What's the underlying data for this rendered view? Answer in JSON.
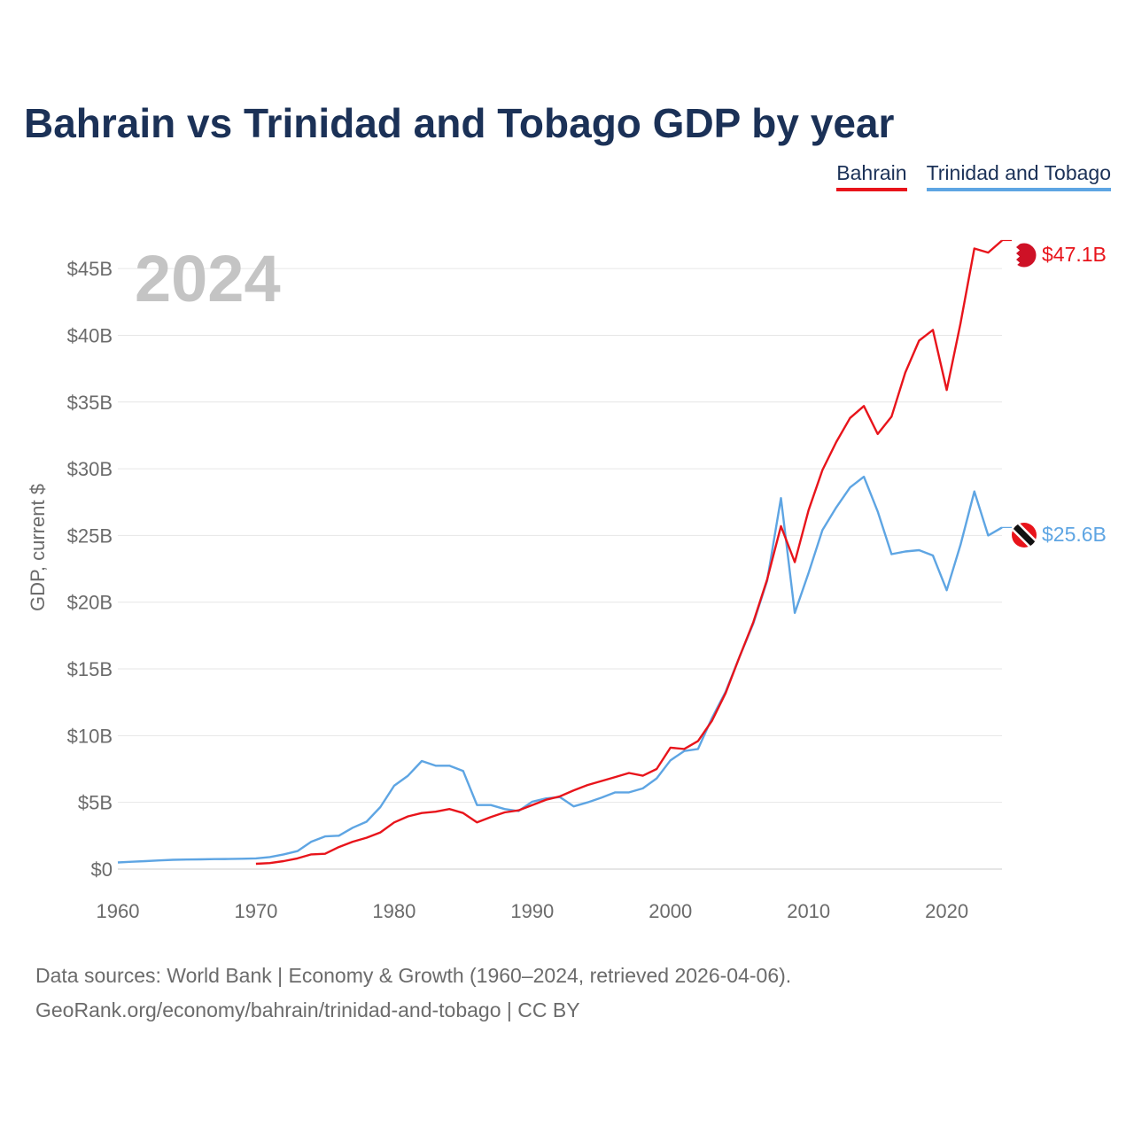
{
  "title": "Bahrain vs Trinidad and Tobago GDP by year",
  "legend": [
    {
      "label": "Bahrain",
      "color": "#e8141b"
    },
    {
      "label": "Trinidad and Tobago",
      "color": "#5ea5e3"
    }
  ],
  "year_label": "2024",
  "source_line1": "Data sources: World Bank | Economy & Growth (1960–2024, retrieved 2026-04-06).",
  "source_line2": "GeoRank.org/economy/bahrain/trinidad-and-tobago | CC BY",
  "chart_data": {
    "type": "line",
    "title": "Bahrain vs Trinidad and Tobago GDP by year",
    "xlabel": "",
    "ylabel": "GDP, current $",
    "xlim": [
      1960,
      2024
    ],
    "ylim": [
      0,
      47
    ],
    "grid": true,
    "x_ticks": [
      1960,
      1970,
      1980,
      1990,
      2000,
      2010,
      2020
    ],
    "x_tick_labels": [
      "1960",
      "1970",
      "1980",
      "1990",
      "2000",
      "2010",
      "2020"
    ],
    "y_ticks": [
      0,
      5,
      10,
      15,
      20,
      25,
      30,
      35,
      40,
      45
    ],
    "y_tick_labels": [
      "$0",
      "$5B",
      "$10B",
      "$15B",
      "$20B",
      "$25B",
      "$30B",
      "$35B",
      "$40B",
      "$45B"
    ],
    "series": [
      {
        "name": "Bahrain",
        "color": "#e8141b",
        "end_label": "$47.1B",
        "x": [
          1970,
          1971,
          1972,
          1973,
          1974,
          1975,
          1976,
          1977,
          1978,
          1979,
          1980,
          1981,
          1982,
          1983,
          1984,
          1985,
          1986,
          1987,
          1988,
          1989,
          1990,
          1991,
          1992,
          1993,
          1994,
          1995,
          1996,
          1997,
          1998,
          1999,
          2000,
          2001,
          2002,
          2003,
          2004,
          2005,
          2006,
          2007,
          2008,
          2009,
          2010,
          2011,
          2012,
          2013,
          2014,
          2015,
          2016,
          2017,
          2018,
          2019,
          2020,
          2021,
          2022,
          2023,
          2024
        ],
        "values": [
          0.4,
          0.45,
          0.6,
          0.8,
          1.1,
          1.15,
          1.65,
          2.05,
          2.35,
          2.75,
          3.5,
          3.95,
          4.2,
          4.3,
          4.5,
          4.2,
          3.5,
          3.9,
          4.25,
          4.4,
          4.8,
          5.2,
          5.45,
          5.9,
          6.3,
          6.6,
          6.9,
          7.2,
          7.0,
          7.5,
          9.1,
          9.0,
          9.6,
          11.1,
          13.2,
          15.9,
          18.5,
          21.7,
          25.7,
          23.0,
          26.9,
          29.9,
          32.0,
          33.8,
          34.7,
          32.6,
          33.9,
          37.2,
          39.6,
          40.4,
          35.9,
          40.9,
          46.5,
          46.2,
          47.1
        ]
      },
      {
        "name": "Trinidad and Tobago",
        "color": "#5ea5e3",
        "end_label": "$25.6B",
        "x": [
          1960,
          1961,
          1962,
          1963,
          1964,
          1965,
          1966,
          1967,
          1968,
          1969,
          1970,
          1971,
          1972,
          1973,
          1974,
          1975,
          1976,
          1977,
          1978,
          1979,
          1980,
          1981,
          1982,
          1983,
          1984,
          1985,
          1986,
          1987,
          1988,
          1989,
          1990,
          1991,
          1992,
          1993,
          1994,
          1995,
          1996,
          1997,
          1998,
          1999,
          2000,
          2001,
          2002,
          2003,
          2004,
          2005,
          2006,
          2007,
          2008,
          2009,
          2010,
          2011,
          2012,
          2013,
          2014,
          2015,
          2016,
          2017,
          2018,
          2019,
          2020,
          2021,
          2022,
          2023,
          2024
        ],
        "values": [
          0.5,
          0.55,
          0.6,
          0.65,
          0.7,
          0.72,
          0.73,
          0.75,
          0.76,
          0.78,
          0.8,
          0.9,
          1.1,
          1.35,
          2.05,
          2.45,
          2.5,
          3.1,
          3.55,
          4.65,
          6.25,
          7.0,
          8.1,
          7.75,
          7.75,
          7.35,
          4.8,
          4.8,
          4.5,
          4.35,
          5.05,
          5.3,
          5.4,
          4.7,
          5.0,
          5.35,
          5.75,
          5.75,
          6.05,
          6.8,
          8.15,
          8.85,
          9.0,
          11.3,
          13.3,
          15.9,
          18.4,
          21.6,
          27.8,
          19.2,
          22.2,
          25.4,
          27.1,
          28.6,
          29.4,
          26.8,
          23.6,
          23.8,
          23.9,
          23.5,
          20.9,
          24.3,
          28.3,
          25.0,
          25.6
        ]
      }
    ]
  }
}
